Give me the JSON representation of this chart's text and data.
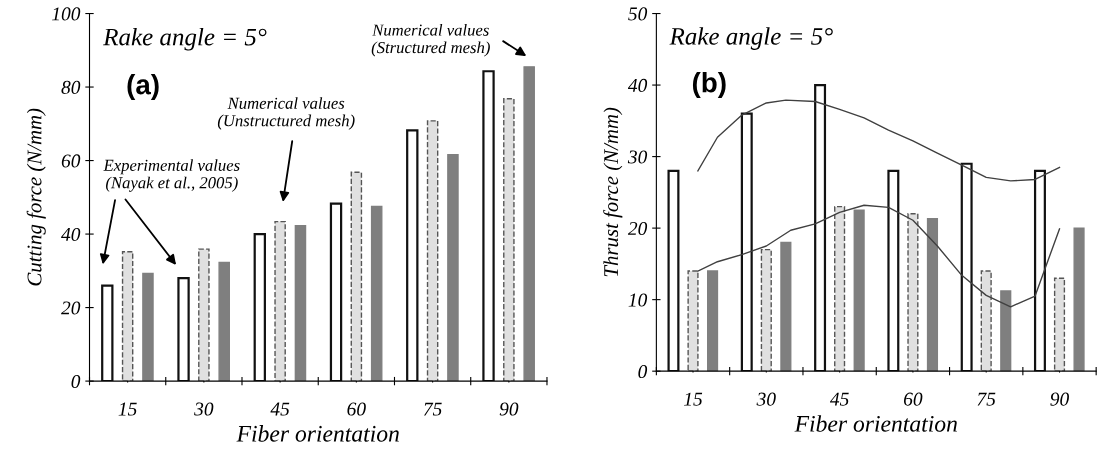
{
  "chart_data": [
    {
      "type": "bar",
      "xlabel": "Fiber orientation",
      "ylabel": "Cutting force (N/mm)",
      "x": [
        15,
        30,
        45,
        60,
        75,
        90
      ],
      "xlim": [
        7.5,
        97.5
      ],
      "xticks": [
        {
          "value": 7.5,
          "label": null
        },
        15,
        {
          "value": 22.5,
          "label": null
        },
        30,
        {
          "value": 37.5,
          "label": null
        },
        45,
        {
          "value": 52.5,
          "label": null
        },
        60,
        {
          "value": 67.5,
          "label": null
        },
        75,
        {
          "value": 82.5,
          "label": null
        },
        90,
        {
          "value": 97.5,
          "label": null
        }
      ],
      "ylim": [
        0,
        100
      ],
      "yticks": [
        0,
        20,
        40,
        60,
        80,
        100
      ],
      "grid": false,
      "legend": false,
      "series": [
        {
          "color": "#ffffff",
          "values": [
            26,
            28,
            40,
            48.3,
            68.2,
            84.3
          ]
        },
        {
          "color": "#e0e0e0",
          "line_style": "dashed",
          "values": [
            35.2,
            35.9,
            43.4,
            56.8,
            70.8,
            76.8
          ]
        },
        {
          "color": "#7f7f7f",
          "values": [
            29.3,
            32.3,
            42.3,
            47.5,
            61.6,
            85.5
          ]
        }
      ],
      "annotations": [
        "Rake angle = 5°",
        "(a)",
        "Experimental values\n(Nayak et al., 2005)",
        "Numerical values\n(Unstructured mesh)",
        "Numerical values\n(Structured mesh)"
      ]
    },
    {
      "type": "bar",
      "xlabel": "Fiber orientation",
      "ylabel": "Thrust force (N/mm)",
      "x": [
        15,
        30,
        45,
        60,
        75,
        90
      ],
      "xlim": [
        7.5,
        97.5
      ],
      "xticks": [
        {
          "value": 7.5,
          "label": null
        },
        15,
        {
          "value": 22.5,
          "label": null
        },
        30,
        {
          "value": 37.5,
          "label": null
        },
        45,
        {
          "value": 52.5,
          "label": null
        },
        60,
        {
          "value": 67.5,
          "label": null
        },
        75,
        {
          "value": 82.5,
          "label": null
        },
        90,
        {
          "value": 97.5,
          "label": null
        }
      ],
      "ylim": [
        0,
        50
      ],
      "yticks": [
        0,
        10,
        20,
        30,
        40,
        50
      ],
      "grid": false,
      "legend": false,
      "series": [
        {
          "color": "#ffffff",
          "values": [
            28,
            36,
            40,
            28,
            29,
            28
          ]
        },
        {
          "color": "#e0e0e0",
          "line_style": "dashed",
          "values": [
            14,
            17,
            23,
            22,
            14,
            13
          ]
        },
        {
          "color": "#7f7f7f",
          "values": [
            14,
            18,
            22.5,
            21.3,
            11.2,
            20
          ]
        },
        {
          "type": "line",
          "color": "#404040",
          "x": [
            16,
            20,
            25,
            30,
            34,
            40,
            45,
            50,
            55,
            60,
            65,
            70,
            75,
            80,
            85,
            90
          ],
          "values": [
            28,
            32.7,
            35.8,
            37.5,
            37.9,
            37.7,
            36.6,
            35.4,
            33.7,
            32.2,
            30.5,
            28.8,
            27.1,
            26.6,
            26.8,
            28.5
          ]
        },
        {
          "type": "line",
          "color": "#404040",
          "x": [
            16,
            20,
            25,
            30,
            35,
            40,
            45,
            50,
            55,
            60,
            65,
            70,
            75,
            80,
            85,
            90
          ],
          "values": [
            14,
            15.3,
            16.3,
            17.5,
            19.7,
            20.6,
            22.2,
            23.2,
            22.9,
            21.1,
            17.5,
            13.4,
            10.6,
            9,
            10.5,
            19.9
          ]
        }
      ],
      "annotations": [
        "Rake angle = 5°",
        "(b)"
      ]
    }
  ]
}
